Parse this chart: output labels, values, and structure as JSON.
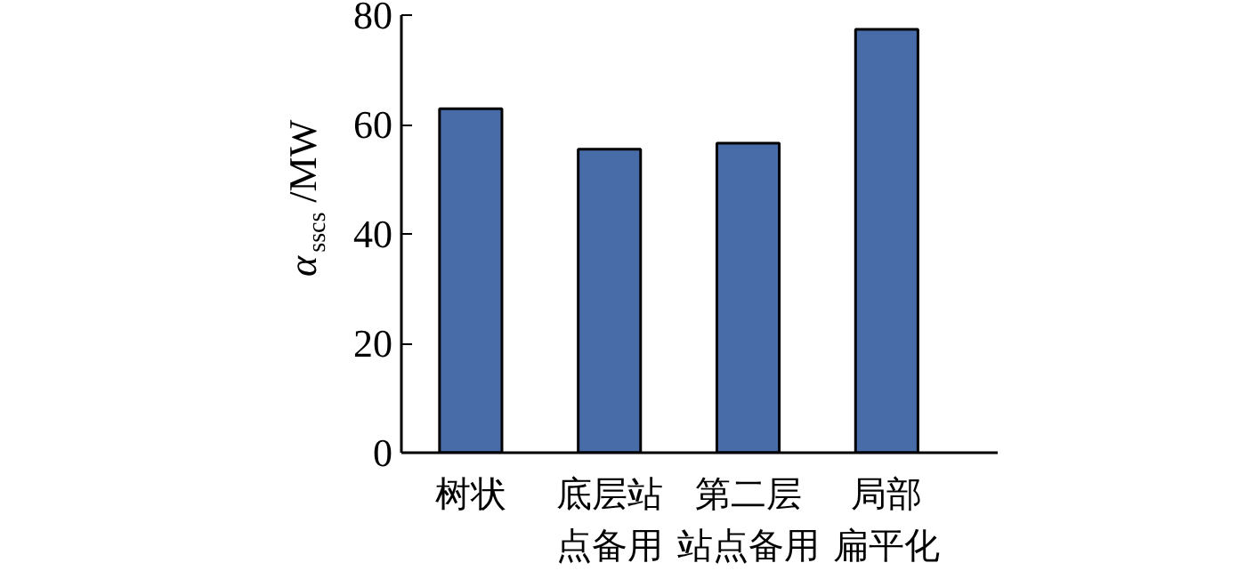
{
  "chart_data": {
    "type": "bar",
    "ylabel": "α$_{sscs}$/MW",
    "categories": [
      "树状",
      "底层站点备用",
      "第二层站点备用",
      "局部扁平化"
    ],
    "values": [
      62.9,
      55.5,
      56.6,
      77.4
    ],
    "color": "#476ca8",
    "ylim": [
      0,
      80
    ],
    "yticks": [
      0,
      20,
      40,
      60,
      80
    ],
    "grid": false
  }
}
